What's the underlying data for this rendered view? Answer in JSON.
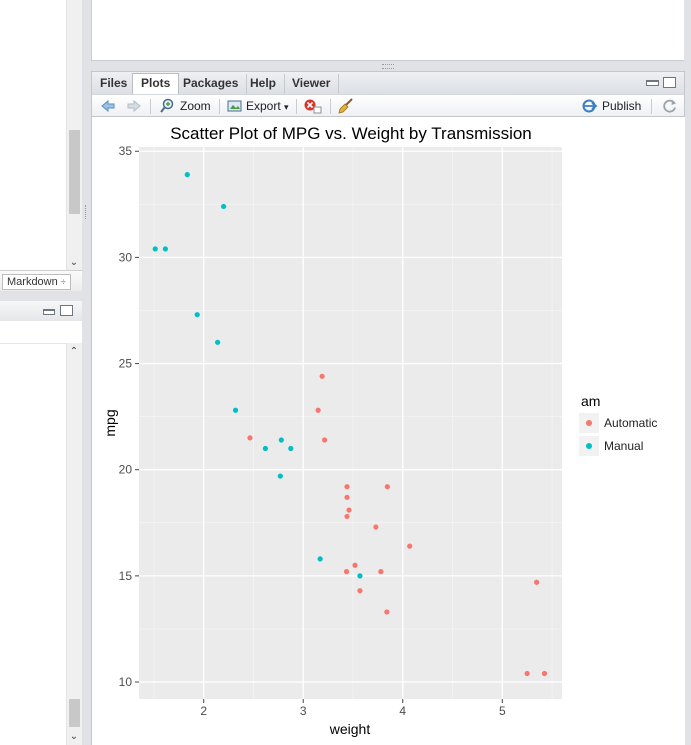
{
  "left_panel": {
    "markdown_label": "Markdown",
    "markdown_arrow": "÷"
  },
  "tabs": [
    {
      "label": "Files",
      "active": false
    },
    {
      "label": "Plots",
      "active": true
    },
    {
      "label": "Packages",
      "active": false
    },
    {
      "label": "Help",
      "active": false
    },
    {
      "label": "Viewer",
      "active": false
    }
  ],
  "toolbar": {
    "back_icon": "arrow-left-icon",
    "forward_icon": "arrow-right-icon",
    "zoom_label": "Zoom",
    "export_label": "Export",
    "export_caret": "▾",
    "remove_icon": "remove-plot-icon",
    "clear_icon": "broom-icon",
    "publish_label": "Publish",
    "refresh_icon": "refresh-icon"
  },
  "colors": {
    "automatic": "#F8766D",
    "manual": "#00BFC4",
    "panel_bg": "#EBEBEB",
    "accent": "#3c7fc1"
  },
  "chart_data": {
    "type": "scatter",
    "title": "Scatter Plot of MPG vs. Weight by Transmission",
    "xlabel": "weight",
    "ylabel": "mpg",
    "xlim": [
      1.35,
      5.6
    ],
    "ylim": [
      9.2,
      35.2
    ],
    "xticks": [
      2,
      3,
      4,
      5
    ],
    "yticks": [
      10,
      15,
      20,
      25,
      30,
      35
    ],
    "grid": true,
    "legend": {
      "title": "am",
      "position": "right",
      "entries": [
        "Automatic",
        "Manual"
      ]
    },
    "series": [
      {
        "name": "Automatic",
        "color": "#F8766D",
        "points": [
          [
            2.465,
            21.5
          ],
          [
            3.215,
            21.4
          ],
          [
            3.44,
            18.7
          ],
          [
            3.46,
            18.1
          ],
          [
            3.57,
            14.3
          ],
          [
            3.19,
            24.4
          ],
          [
            3.15,
            22.8
          ],
          [
            3.44,
            19.2
          ],
          [
            3.44,
            17.8
          ],
          [
            4.07,
            16.4
          ],
          [
            3.73,
            17.3
          ],
          [
            3.78,
            15.2
          ],
          [
            5.25,
            10.4
          ],
          [
            5.424,
            10.4
          ],
          [
            5.345,
            14.7
          ],
          [
            3.52,
            15.5
          ],
          [
            3.435,
            15.2
          ],
          [
            3.84,
            13.3
          ],
          [
            3.845,
            19.2
          ]
        ]
      },
      {
        "name": "Manual",
        "color": "#00BFC4",
        "points": [
          [
            2.62,
            21.0
          ],
          [
            2.875,
            21.0
          ],
          [
            2.32,
            22.8
          ],
          [
            2.2,
            32.4
          ],
          [
            1.615,
            30.4
          ],
          [
            1.835,
            33.9
          ],
          [
            1.935,
            27.3
          ],
          [
            2.14,
            26.0
          ],
          [
            1.513,
            30.4
          ],
          [
            3.17,
            15.8
          ],
          [
            2.77,
            19.7
          ],
          [
            3.57,
            15.0
          ],
          [
            2.78,
            21.4
          ]
        ]
      }
    ]
  }
}
